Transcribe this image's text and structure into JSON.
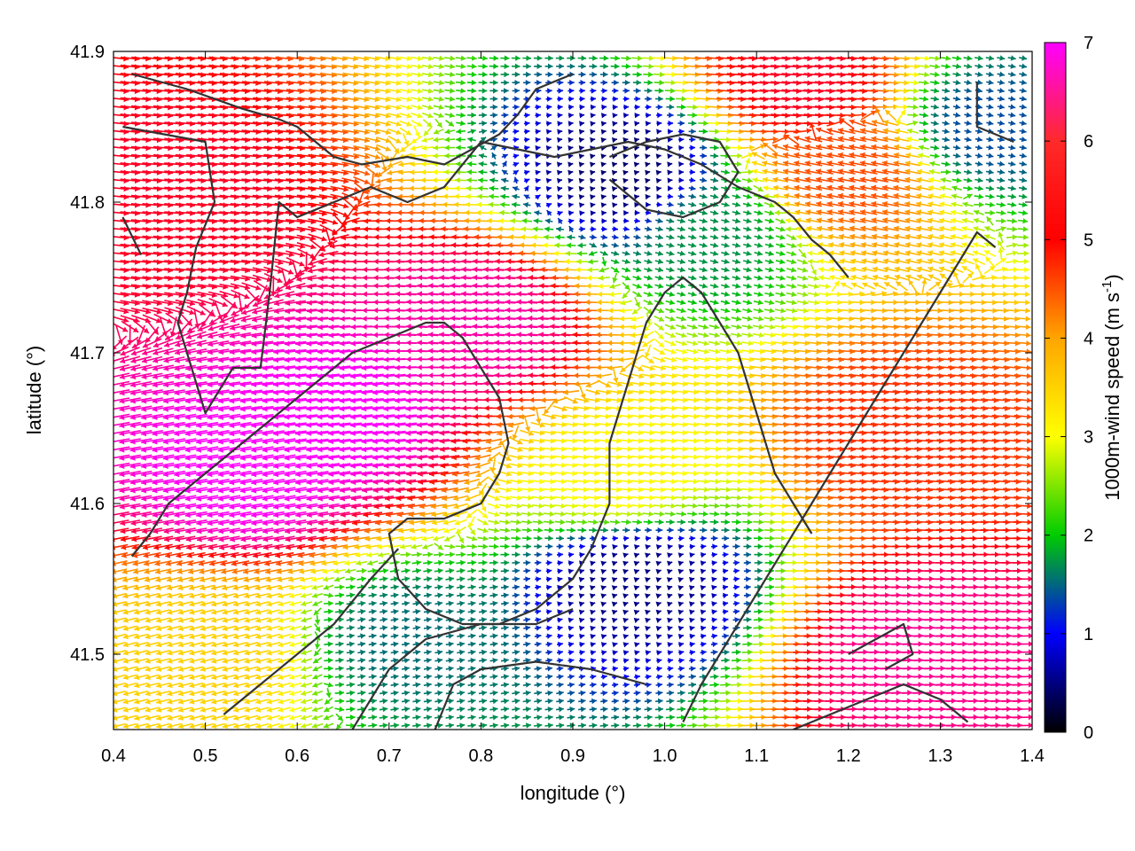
{
  "chart_data": {
    "type": "vector-field",
    "xlabel": "longitude (°)",
    "ylabel": "latitude (°)",
    "xlim": [
      0.4,
      1.4
    ],
    "ylim": [
      41.45,
      41.9
    ],
    "xticks": [
      0.4,
      0.5,
      0.6,
      0.7,
      0.8,
      0.9,
      1.0,
      1.1,
      1.2,
      1.3,
      1.4
    ],
    "xtick_labels": [
      "0.4",
      "0.5",
      "0.6",
      "0.7",
      "0.8",
      "0.9",
      "1.0",
      "1.1",
      "1.2",
      "1.3",
      "1.4"
    ],
    "yticks": [
      41.5,
      41.6,
      41.7,
      41.8,
      41.9
    ],
    "ytick_labels": [
      "41.5",
      "41.6",
      "41.7",
      "41.8",
      "41.9"
    ],
    "colorbar": {
      "label_main": "1000m-wind speed (m s",
      "label_sup": "-1",
      "label_end": ")",
      "range": [
        0,
        7
      ],
      "ticks": [
        0,
        1,
        2,
        3,
        4,
        5,
        6,
        7
      ],
      "tick_labels": [
        "0",
        "1",
        "2",
        "3",
        "4",
        "5",
        "6",
        "7"
      ],
      "colormap": [
        "#000000",
        "#0000ff",
        "#00cc00",
        "#ffff00",
        "#ffa500",
        "#ff0000",
        "#ff00ff"
      ]
    },
    "grid": false,
    "grid_spacing_deg": 0.012,
    "wind_cells": [
      {
        "lon": 0.65,
        "lat": 41.66,
        "u": -7.0,
        "v": -0.8,
        "speed": 7.0
      },
      {
        "lon": 0.55,
        "lat": 41.62,
        "u": -6.9,
        "v": -1.2,
        "speed": 7.0
      },
      {
        "lon": 0.8,
        "lat": 41.72,
        "u": -6.6,
        "v": 0.4,
        "speed": 6.6
      },
      {
        "lon": 0.95,
        "lat": 41.62,
        "u": 3.6,
        "v": -0.4,
        "speed": 3.6
      },
      {
        "lon": 0.97,
        "lat": 41.55,
        "u": 0.6,
        "v": 0.2,
        "speed": 0.6
      },
      {
        "lon": 0.72,
        "lat": 41.51,
        "u": 1.8,
        "v": 0.3,
        "speed": 1.8
      },
      {
        "lon": 0.96,
        "lat": 41.82,
        "u": 0.5,
        "v": 0.1,
        "speed": 0.5
      },
      {
        "lon": 1.05,
        "lat": 41.78,
        "u": 2.0,
        "v": -0.5,
        "speed": 2.0
      },
      {
        "lon": 1.35,
        "lat": 41.85,
        "u": 1.6,
        "v": -0.3,
        "speed": 1.6
      },
      {
        "lon": 1.25,
        "lat": 41.65,
        "u": 5.5,
        "v": -0.5,
        "speed": 5.5
      },
      {
        "lon": 1.28,
        "lat": 41.5,
        "u": 6.5,
        "v": 0.2,
        "speed": 6.5
      },
      {
        "lon": 0.46,
        "lat": 41.8,
        "u": 6.0,
        "v": -0.6,
        "speed": 6.0
      },
      {
        "lon": 0.5,
        "lat": 41.5,
        "u": -4.0,
        "v": -1.0,
        "speed": 4.1
      },
      {
        "lon": 1.2,
        "lat": 41.82,
        "u": -5.2,
        "v": 1.0,
        "speed": 5.3
      },
      {
        "lon": 1.15,
        "lat": 41.88,
        "u": 6.0,
        "v": -0.5,
        "speed": 6.0
      }
    ],
    "contours": [
      [
        [
          0.42,
          41.885
        ],
        [
          0.48,
          41.875
        ],
        [
          0.54,
          41.862
        ],
        [
          0.58,
          41.855
        ],
        [
          0.6,
          41.85
        ],
        [
          0.62,
          41.84
        ],
        [
          0.64,
          41.83
        ],
        [
          0.67,
          41.825
        ],
        [
          0.72,
          41.83
        ],
        [
          0.76,
          41.825
        ],
        [
          0.79,
          41.835
        ],
        [
          0.82,
          41.845
        ],
        [
          0.84,
          41.858
        ],
        [
          0.86,
          41.875
        ],
        [
          0.9,
          41.885
        ]
      ],
      [
        [
          0.41,
          41.85
        ],
        [
          0.5,
          41.84
        ],
        [
          0.51,
          41.8
        ],
        [
          0.49,
          41.77
        ],
        [
          0.48,
          41.74
        ],
        [
          0.47,
          41.72
        ],
        [
          0.48,
          41.7
        ],
        [
          0.5,
          41.66
        ],
        [
          0.53,
          41.69
        ],
        [
          0.56,
          41.69
        ],
        [
          0.57,
          41.74
        ],
        [
          0.58,
          41.8
        ],
        [
          0.6,
          41.79
        ],
        [
          0.64,
          41.8
        ],
        [
          0.68,
          41.81
        ],
        [
          0.72,
          41.8
        ],
        [
          0.76,
          41.81
        ],
        [
          0.8,
          41.84
        ],
        [
          0.84,
          41.835
        ],
        [
          0.88,
          41.83
        ],
        [
          0.92,
          41.835
        ],
        [
          0.96,
          41.84
        ],
        [
          1.0,
          41.835
        ],
        [
          1.04,
          41.825
        ],
        [
          1.08,
          41.81
        ],
        [
          1.12,
          41.8
        ],
        [
          1.14,
          41.79
        ],
        [
          1.16,
          41.775
        ],
        [
          1.18,
          41.765
        ],
        [
          1.2,
          41.75
        ]
      ],
      [
        [
          0.41,
          41.79
        ],
        [
          0.43,
          41.765
        ]
      ],
      [
        [
          0.42,
          41.565
        ],
        [
          0.44,
          41.58
        ],
        [
          0.46,
          41.6
        ],
        [
          0.5,
          41.62
        ],
        [
          0.54,
          41.64
        ],
        [
          0.58,
          41.66
        ],
        [
          0.62,
          41.68
        ],
        [
          0.66,
          41.7
        ],
        [
          0.7,
          41.71
        ],
        [
          0.74,
          41.72
        ],
        [
          0.76,
          41.72
        ],
        [
          0.78,
          41.71
        ],
        [
          0.8,
          41.69
        ],
        [
          0.82,
          41.67
        ],
        [
          0.83,
          41.64
        ],
        [
          0.82,
          41.62
        ],
        [
          0.8,
          41.6
        ],
        [
          0.76,
          41.59
        ],
        [
          0.72,
          41.59
        ],
        [
          0.7,
          41.58
        ],
        [
          0.71,
          41.55
        ],
        [
          0.74,
          41.53
        ],
        [
          0.78,
          41.52
        ],
        [
          0.82,
          41.52
        ],
        [
          0.86,
          41.53
        ],
        [
          0.9,
          41.55
        ],
        [
          0.92,
          41.57
        ],
        [
          0.94,
          41.6
        ],
        [
          0.94,
          41.64
        ],
        [
          0.96,
          41.68
        ],
        [
          0.98,
          41.72
        ],
        [
          1.0,
          41.74
        ],
        [
          1.02,
          41.75
        ],
        [
          1.04,
          41.74
        ],
        [
          1.06,
          41.72
        ],
        [
          1.08,
          41.7
        ],
        [
          1.1,
          41.66
        ],
        [
          1.12,
          41.62
        ],
        [
          1.14,
          41.6
        ],
        [
          1.16,
          41.58
        ]
      ],
      [
        [
          0.52,
          41.46
        ],
        [
          0.56,
          41.48
        ],
        [
          0.6,
          41.5
        ],
        [
          0.64,
          41.52
        ],
        [
          0.68,
          41.55
        ],
        [
          0.71,
          41.57
        ]
      ],
      [
        [
          0.66,
          41.45
        ],
        [
          0.7,
          41.49
        ],
        [
          0.74,
          41.51
        ],
        [
          0.8,
          41.52
        ],
        [
          0.86,
          41.52
        ],
        [
          0.9,
          41.53
        ]
      ],
      [
        [
          0.75,
          41.45
        ],
        [
          0.77,
          41.48
        ],
        [
          0.8,
          41.49
        ],
        [
          0.86,
          41.495
        ],
        [
          0.92,
          41.49
        ],
        [
          0.98,
          41.48
        ]
      ],
      [
        [
          1.02,
          41.455
        ],
        [
          1.04,
          41.48
        ],
        [
          1.06,
          41.5
        ],
        [
          1.08,
          41.52
        ],
        [
          1.1,
          41.54
        ],
        [
          1.12,
          41.56
        ],
        [
          1.14,
          41.58
        ],
        [
          1.16,
          41.6
        ],
        [
          1.18,
          41.62
        ],
        [
          1.2,
          41.64
        ],
        [
          1.23,
          41.67
        ],
        [
          1.26,
          41.7
        ],
        [
          1.28,
          41.72
        ],
        [
          1.3,
          41.74
        ],
        [
          1.32,
          41.76
        ],
        [
          1.34,
          41.78
        ],
        [
          1.36,
          41.77
        ]
      ],
      [
        [
          1.14,
          41.45
        ],
        [
          1.18,
          41.46
        ],
        [
          1.22,
          41.47
        ],
        [
          1.26,
          41.48
        ],
        [
          1.3,
          41.47
        ],
        [
          1.33,
          41.455
        ]
      ],
      [
        [
          1.2,
          41.5
        ],
        [
          1.23,
          41.51
        ],
        [
          1.26,
          41.52
        ],
        [
          1.27,
          41.5
        ],
        [
          1.24,
          41.49
        ]
      ],
      [
        [
          0.94,
          41.815
        ],
        [
          0.98,
          41.795
        ],
        [
          1.02,
          41.79
        ],
        [
          1.06,
          41.8
        ],
        [
          1.08,
          41.82
        ],
        [
          1.06,
          41.84
        ],
        [
          1.02,
          41.845
        ],
        [
          0.98,
          41.84
        ],
        [
          0.94,
          41.83
        ]
      ],
      [
        [
          1.34,
          41.88
        ],
        [
          1.34,
          41.85
        ],
        [
          1.38,
          41.84
        ]
      ]
    ]
  }
}
